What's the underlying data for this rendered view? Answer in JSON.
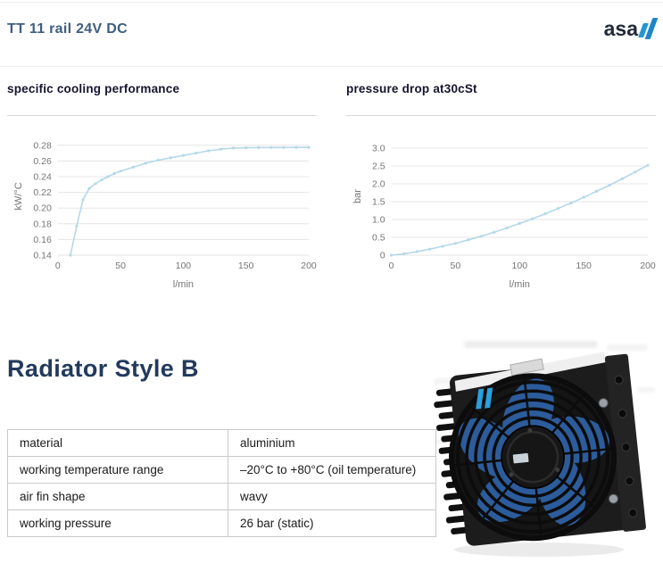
{
  "header": {
    "title": "TT 11 rail 24V DC",
    "logo": {
      "text": "asa",
      "icon": "double-slash-icon",
      "accent_blue": "#2596d1"
    }
  },
  "section": {
    "heading": "Radiator Style B"
  },
  "spec_table": {
    "rows": [
      {
        "label": "material",
        "value": "aluminium"
      },
      {
        "label": "working temperature range",
        "value": "–20°C to +80°C (oil temperature)"
      },
      {
        "label": "air fin shape",
        "value": "wavy"
      },
      {
        "label": "working pressure",
        "value": "26 bar (static)"
      }
    ]
  },
  "product_image": {
    "description": "black radiator with fan, blue blades, style B"
  },
  "colors": {
    "accent_blue": "#2596d1",
    "line_blue": "#b5d8e9",
    "header_navy": "#3f5e7e",
    "heading_navy": "#233a5c",
    "chart_title_ink": "#15142f",
    "grid_gray": "#e5e5e5",
    "tick_gray": "#757575"
  },
  "chart_data": [
    {
      "type": "line",
      "title": "specific cooling performance",
      "xlabel": "l/min",
      "ylabel": "kW/°C",
      "xlim": [
        0,
        200
      ],
      "ylim": [
        0.14,
        0.29
      ],
      "xticks": [
        0,
        50,
        100,
        150,
        200
      ],
      "xtick_labels": [
        "0",
        "50",
        "100",
        "150",
        "200"
      ],
      "yticks": [
        0.14,
        0.16,
        0.18,
        0.2,
        0.22,
        0.24,
        0.26,
        0.28
      ],
      "ytick_labels": [
        "0.14",
        "0.16",
        "0.18",
        "0.20",
        "0.22",
        "0.24",
        "0.26",
        "0.28"
      ],
      "grid": "horizontal",
      "legend": "none",
      "series": [
        {
          "name": "specific cooling performance",
          "color": "#b5d8e9",
          "marker": "dot",
          "points": [
            [
              10,
              0.14
            ],
            [
              15,
              0.177
            ],
            [
              20,
              0.21
            ],
            [
              25,
              0.225
            ],
            [
              30,
              0.231
            ],
            [
              35,
              0.236
            ],
            [
              40,
              0.24
            ],
            [
              45,
              0.244
            ],
            [
              50,
              0.247
            ],
            [
              60,
              0.252
            ],
            [
              70,
              0.257
            ],
            [
              80,
              0.261
            ],
            [
              90,
              0.264
            ],
            [
              100,
              0.267
            ],
            [
              110,
              0.27
            ],
            [
              120,
              0.273
            ],
            [
              130,
              0.275
            ],
            [
              140,
              0.2765
            ],
            [
              150,
              0.2768
            ],
            [
              160,
              0.277
            ],
            [
              170,
              0.2772
            ],
            [
              180,
              0.2772
            ],
            [
              190,
              0.2773
            ],
            [
              200,
              0.2773
            ]
          ]
        }
      ]
    },
    {
      "type": "line",
      "title": "pressure drop at30cSt",
      "xlabel": "l/min",
      "ylabel": "bar",
      "xlim": [
        0,
        200
      ],
      "ylim": [
        0,
        3.3
      ],
      "xticks": [
        0,
        50,
        100,
        150,
        200
      ],
      "xtick_labels": [
        "0",
        "50",
        "100",
        "150",
        "200"
      ],
      "yticks": [
        0,
        0.5,
        1.0,
        1.5,
        2.0,
        2.5,
        3.0
      ],
      "ytick_labels": [
        "0",
        "0.5",
        "1.0",
        "1.5",
        "2.0",
        "2.5",
        "3.0"
      ],
      "grid": "horizontal",
      "legend": "none",
      "series": [
        {
          "name": "pressure drop at 30 cSt",
          "color": "#b5d8e9",
          "marker": "dot",
          "points": [
            [
              0,
              0
            ],
            [
              10,
              0.04
            ],
            [
              20,
              0.1
            ],
            [
              30,
              0.17
            ],
            [
              40,
              0.25
            ],
            [
              50,
              0.33
            ],
            [
              60,
              0.43
            ],
            [
              70,
              0.53
            ],
            [
              80,
              0.64
            ],
            [
              90,
              0.76
            ],
            [
              100,
              0.89
            ],
            [
              110,
              1.02
            ],
            [
              120,
              1.16
            ],
            [
              130,
              1.31
            ],
            [
              140,
              1.46
            ],
            [
              150,
              1.62
            ],
            [
              160,
              1.79
            ],
            [
              170,
              1.96
            ],
            [
              180,
              2.14
            ],
            [
              190,
              2.33
            ],
            [
              200,
              2.52
            ]
          ]
        }
      ]
    }
  ]
}
